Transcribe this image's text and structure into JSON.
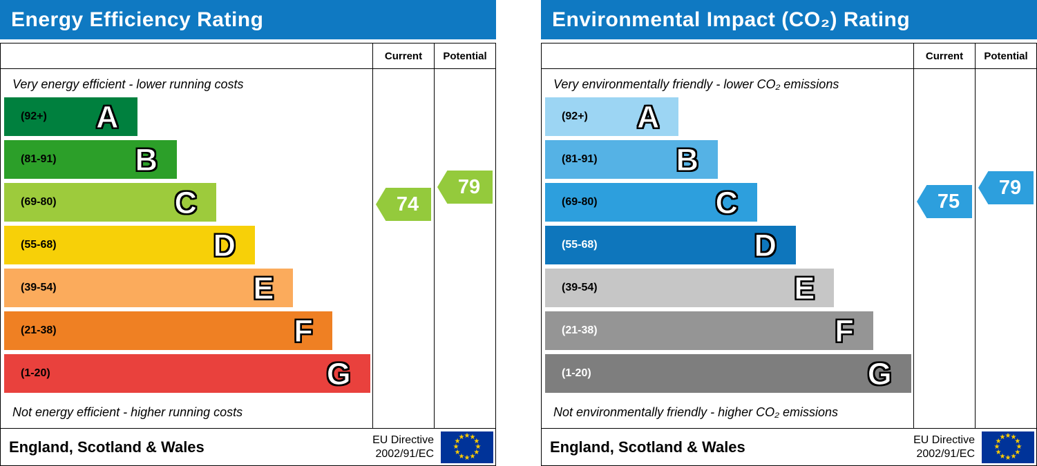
{
  "theme": {
    "header_bg": "#0f79c2",
    "header_text": "#ffffff"
  },
  "eu_flag": {
    "star_glyph": "★",
    "background": "#003399",
    "star_color": "#ffcc00"
  },
  "charts": [
    {
      "title": "Energy Efficiency Rating",
      "columns": {
        "current": "Current",
        "potential": "Potential"
      },
      "top_note": "Very energy efficient - lower running costs",
      "bottom_note": "Not energy efficient - higher running costs",
      "bands": [
        {
          "range": "(92+)",
          "letter": "A",
          "color": "#00803e",
          "range_text_color": "#000000",
          "width_pct": 36.3
        },
        {
          "range": "(81-91)",
          "letter": "B",
          "color": "#2c9f29",
          "range_text_color": "#000000",
          "width_pct": 46.9
        },
        {
          "range": "(69-80)",
          "letter": "C",
          "color": "#9dcb3c",
          "range_text_color": "#000000",
          "width_pct": 57.6
        },
        {
          "range": "(55-68)",
          "letter": "D",
          "color": "#f7d008",
          "range_text_color": "#000000",
          "width_pct": 68.1
        },
        {
          "range": "(39-54)",
          "letter": "E",
          "color": "#fbab5c",
          "range_text_color": "#000000",
          "width_pct": 78.5
        },
        {
          "range": "(21-38)",
          "letter": "F",
          "color": "#ef8023",
          "range_text_color": "#000000",
          "width_pct": 89.1
        },
        {
          "range": "(1-20)",
          "letter": "G",
          "color": "#e9413d",
          "range_text_color": "#000000",
          "width_pct": 99.4
        }
      ],
      "current": {
        "value": "74",
        "band": "C",
        "color": "#94ca3c"
      },
      "potential": {
        "value": "79",
        "band": "C",
        "color": "#94ca3c"
      },
      "footer": {
        "region": "England, Scotland & Wales",
        "directive_line1": "EU Directive",
        "directive_line2": "2002/91/EC"
      }
    },
    {
      "title": "Environmental Impact (CO₂) Rating",
      "columns": {
        "current": "Current",
        "potential": "Potential"
      },
      "top_note": "Very environmentally friendly - lower CO₂ emissions",
      "bottom_note": "Not environmentally friendly - higher CO₂ emissions",
      "bands": [
        {
          "range": "(92+)",
          "letter": "A",
          "color": "#9cd5f3",
          "range_text_color": "#000000",
          "width_pct": 36.3
        },
        {
          "range": "(81-91)",
          "letter": "B",
          "color": "#55b2e5",
          "range_text_color": "#000000",
          "width_pct": 46.9
        },
        {
          "range": "(69-80)",
          "letter": "C",
          "color": "#2d9fdd",
          "range_text_color": "#000000",
          "width_pct": 57.6
        },
        {
          "range": "(55-68)",
          "letter": "D",
          "color": "#0e76bc",
          "range_text_color": "#ffffff",
          "width_pct": 68.1
        },
        {
          "range": "(39-54)",
          "letter": "E",
          "color": "#c6c6c6",
          "range_text_color": "#000000",
          "width_pct": 78.5
        },
        {
          "range": "(21-38)",
          "letter": "F",
          "color": "#959595",
          "range_text_color": "#ffffff",
          "width_pct": 89.1
        },
        {
          "range": "(1-20)",
          "letter": "G",
          "color": "#7e7e7e",
          "range_text_color": "#ffffff",
          "width_pct": 99.4
        }
      ],
      "current": {
        "value": "75",
        "band": "C",
        "color": "#2d9fdd"
      },
      "potential": {
        "value": "79",
        "band": "C",
        "color": "#2d9fdd"
      },
      "footer": {
        "region": "England, Scotland & Wales",
        "directive_line1": "EU Directive",
        "directive_line2": "2002/91/EC"
      }
    }
  ],
  "chart_data": [
    {
      "type": "bar",
      "title": "Energy Efficiency Rating",
      "categories": [
        "A",
        "B",
        "C",
        "D",
        "E",
        "F",
        "G"
      ],
      "band_ranges": [
        "92+",
        "81-91",
        "69-80",
        "55-68",
        "39-54",
        "21-38",
        "1-20"
      ],
      "series": [
        {
          "name": "Current",
          "values": [
            74
          ],
          "band": "C"
        },
        {
          "name": "Potential",
          "values": [
            79
          ],
          "band": "C"
        }
      ],
      "scale": [
        1,
        100
      ],
      "top_note": "Very energy efficient - lower running costs",
      "bottom_note": "Not energy efficient - higher running costs",
      "region": "England, Scotland & Wales",
      "directive": "EU Directive 2002/91/EC"
    },
    {
      "type": "bar",
      "title": "Environmental Impact (CO₂) Rating",
      "categories": [
        "A",
        "B",
        "C",
        "D",
        "E",
        "F",
        "G"
      ],
      "band_ranges": [
        "92+",
        "81-91",
        "69-80",
        "55-68",
        "39-54",
        "21-38",
        "1-20"
      ],
      "series": [
        {
          "name": "Current",
          "values": [
            75
          ],
          "band": "C"
        },
        {
          "name": "Potential",
          "values": [
            79
          ],
          "band": "C"
        }
      ],
      "scale": [
        1,
        100
      ],
      "top_note": "Very environmentally friendly - lower CO₂ emissions",
      "bottom_note": "Not environmentally friendly - higher CO₂ emissions",
      "region": "England, Scotland & Wales",
      "directive": "EU Directive 2002/91/EC"
    }
  ]
}
